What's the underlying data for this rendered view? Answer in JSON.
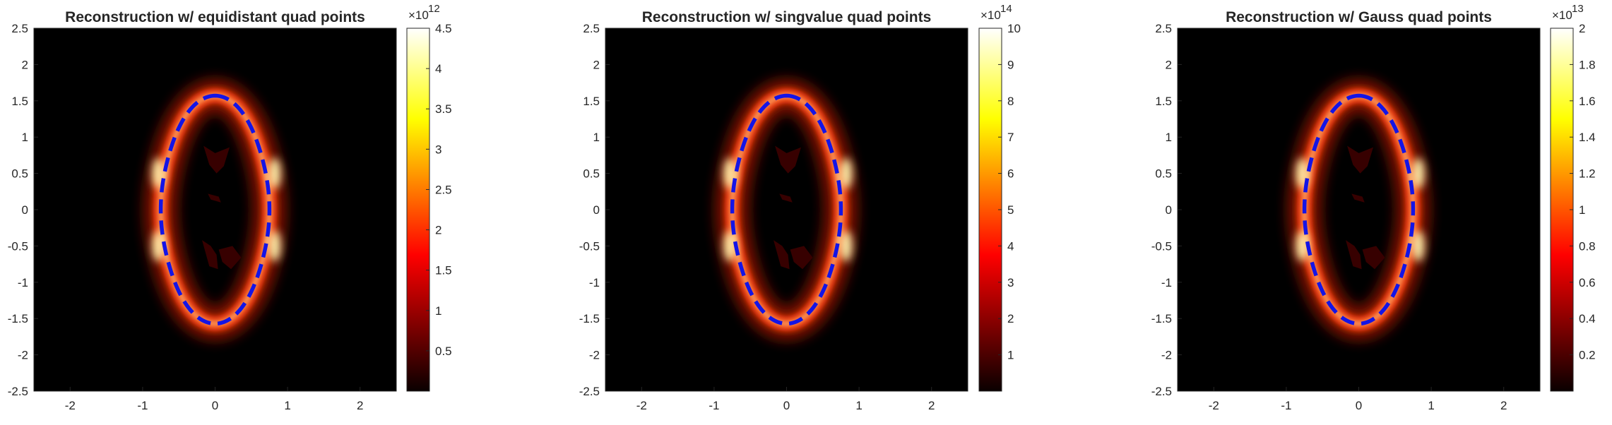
{
  "chart_data": [
    {
      "type": "heatmap",
      "title": "Reconstruction w/ equidistant quad points",
      "xlim": [
        -2.5,
        2.5
      ],
      "ylim": [
        -2.5,
        2.5
      ],
      "xticks": [
        "-2",
        "-1",
        "0",
        "1",
        "2"
      ],
      "yticks": [
        "-2.5",
        "-2",
        "-1.5",
        "-1",
        "-0.5",
        "0",
        "0.5",
        "1",
        "1.5",
        "2",
        "2.5"
      ],
      "colormap": "hot",
      "overlay": "blue dashed boundary curve",
      "overlay_color": "#1414e6",
      "colorbar": {
        "exponent_base": "×10",
        "exponent": "12",
        "range": [
          0,
          4.5
        ],
        "ticks": [
          "0.5",
          "1",
          "1.5",
          "2",
          "2.5",
          "3",
          "3.5",
          "4",
          "4.5"
        ]
      }
    },
    {
      "type": "heatmap",
      "title": "Reconstruction w/ singvalue quad points",
      "xlim": [
        -2.5,
        2.5
      ],
      "ylim": [
        -2.5,
        2.5
      ],
      "xticks": [
        "-2",
        "-1",
        "0",
        "1",
        "2"
      ],
      "yticks": [
        "-2.5",
        "-2",
        "-1.5",
        "-1",
        "-0.5",
        "0",
        "0.5",
        "1",
        "1.5",
        "2",
        "2.5"
      ],
      "colormap": "hot",
      "overlay": "blue dashed boundary curve",
      "overlay_color": "#1414e6",
      "colorbar": {
        "exponent_base": "×10",
        "exponent": "14",
        "range": [
          0,
          10
        ],
        "ticks": [
          "1",
          "2",
          "3",
          "4",
          "5",
          "6",
          "7",
          "8",
          "9",
          "10"
        ]
      }
    },
    {
      "type": "heatmap",
      "title": "Reconstruction w/ Gauss quad points",
      "xlim": [
        -2.5,
        2.5
      ],
      "ylim": [
        -2.5,
        2.5
      ],
      "xticks": [
        "-2",
        "-1",
        "0",
        "1",
        "2"
      ],
      "yticks": [
        "-2.5",
        "-2",
        "-1.5",
        "-1",
        "-0.5",
        "0",
        "0.5",
        "1",
        "1.5",
        "2",
        "2.5"
      ],
      "colormap": "hot",
      "overlay": "blue dashed boundary curve",
      "overlay_color": "#1414e6",
      "colorbar": {
        "exponent_base": "×10",
        "exponent": "13",
        "range": [
          0,
          2
        ],
        "ticks": [
          "0.2",
          "0.4",
          "0.6",
          "0.8",
          "1",
          "1.2",
          "1.4",
          "1.6",
          "1.8",
          "2"
        ]
      }
    }
  ]
}
